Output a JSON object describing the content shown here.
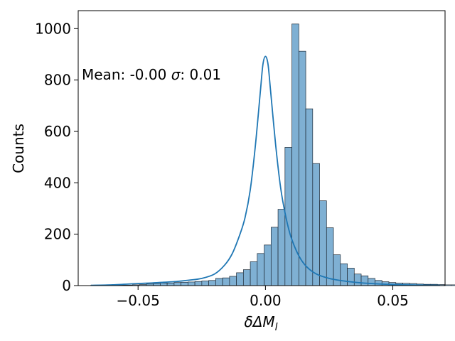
{
  "chart_data": {
    "type": "bar",
    "subtype": "histogram_with_kde",
    "xlabel": "δΔM",
    "xlabel_subscript": "l",
    "ylabel": "Counts",
    "annotation": {
      "mean_label": "Mean: -0.00 ",
      "sigma_symbol": "σ",
      "sigma_label": ": 0.01"
    },
    "xlim": [
      -0.0735,
      0.0705
    ],
    "ylim": [
      0,
      1070
    ],
    "x_ticks": [
      -0.05,
      0.0,
      0.05
    ],
    "x_tick_labels": [
      "−0.05",
      "0.00",
      "0.05"
    ],
    "y_ticks": [
      0,
      200,
      400,
      600,
      800,
      1000
    ],
    "y_tick_labels": [
      "0",
      "200",
      "400",
      "600",
      "800",
      "1000"
    ],
    "bin_start": -0.0685,
    "bin_width": 0.00272,
    "counts": [
      2,
      2,
      2,
      2,
      2,
      2,
      3,
      4,
      6,
      8,
      10,
      10,
      12,
      13,
      14,
      16,
      18,
      20,
      28,
      30,
      36,
      50,
      62,
      93,
      125,
      158,
      227,
      297,
      538,
      1018,
      912,
      688,
      475,
      330,
      225,
      120,
      85,
      68,
      45,
      38,
      28,
      20,
      15,
      12,
      10,
      9,
      8,
      6,
      5,
      5,
      4,
      3,
      3
    ],
    "kde": {
      "x": [
        -0.0685,
        -0.06,
        -0.05,
        -0.045,
        -0.04,
        -0.035,
        -0.03,
        -0.025,
        -0.02,
        -0.016,
        -0.013,
        -0.01,
        -0.008,
        -0.006,
        -0.004,
        -0.002,
        -0.001,
        0.0,
        0.001,
        0.002,
        0.004,
        0.006,
        0.008,
        0.01,
        0.013,
        0.016,
        0.02,
        0.025,
        0.03,
        0.035,
        0.04,
        0.05,
        0.06,
        0.0685
      ],
      "y": [
        1,
        3,
        8,
        10,
        13,
        16,
        21,
        28,
        45,
        80,
        125,
        200,
        265,
        370,
        540,
        755,
        860,
        892,
        862,
        760,
        548,
        378,
        268,
        190,
        118,
        75,
        45,
        28,
        19,
        13,
        9,
        4,
        2,
        1
      ]
    },
    "colors": {
      "bar_fill": "#7fb0d3",
      "bar_edge": "#1f2a36",
      "kde_line": "#1f77b4"
    }
  }
}
